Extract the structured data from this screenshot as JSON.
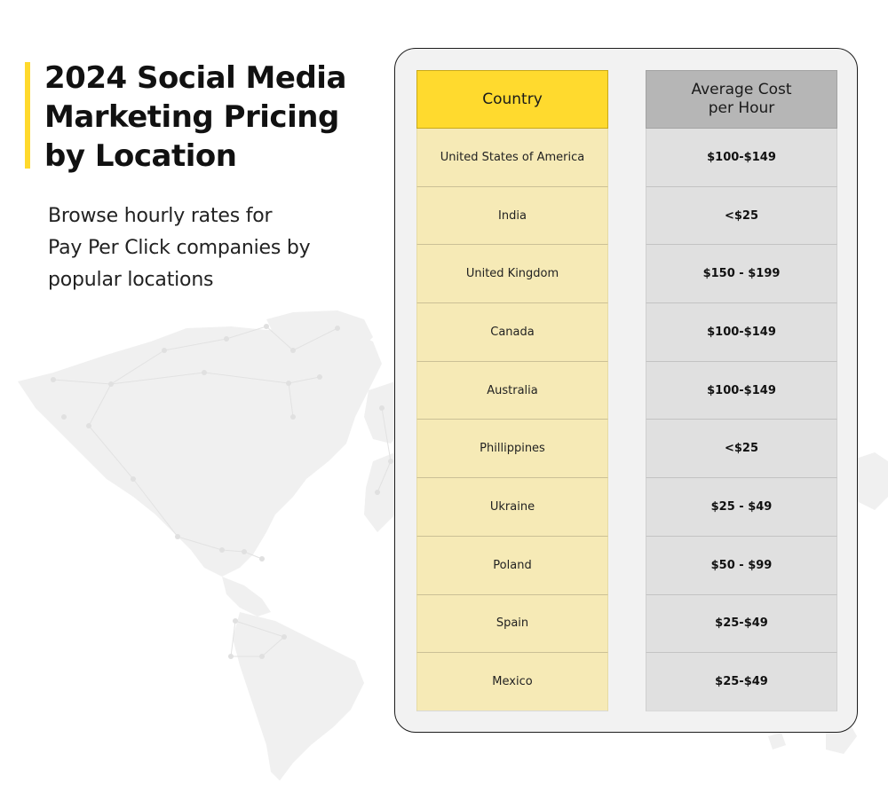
{
  "header": {
    "title": "2024 Social Media Marketing Pricing by Location",
    "subtitle_lines": [
      "Browse hourly rates for",
      "Pay Per Click companies by",
      "popular locations"
    ]
  },
  "table": {
    "headers": {
      "country": "Country",
      "cost": "Average Cost\nper Hour"
    },
    "rows": [
      {
        "country": "United States of America",
        "cost": "$100-$149"
      },
      {
        "country": "India",
        "cost": "<$25"
      },
      {
        "country": "United Kingdom",
        "cost": "$150 - $199"
      },
      {
        "country": "Canada",
        "cost": "$100-$149"
      },
      {
        "country": "Australia",
        "cost": "$100-$149"
      },
      {
        "country": "Phillippines",
        "cost": "<$25"
      },
      {
        "country": "Ukraine",
        "cost": "$25 - $49"
      },
      {
        "country": "Poland",
        "cost": "$50 - $99"
      },
      {
        "country": "Spain",
        "cost": "$25-$49"
      },
      {
        "country": "Mexico",
        "cost": "$25-$49"
      }
    ]
  },
  "colors": {
    "accent": "#FFD92C",
    "country_header": "#FFDA2E",
    "country_cell": "#F6EAB6",
    "cost_header": "#B6B6B6",
    "cost_cell": "#E0E0E0",
    "panel_bg": "#F2F2F2"
  },
  "decor": {
    "background_icon": "world-map-network-icon"
  }
}
